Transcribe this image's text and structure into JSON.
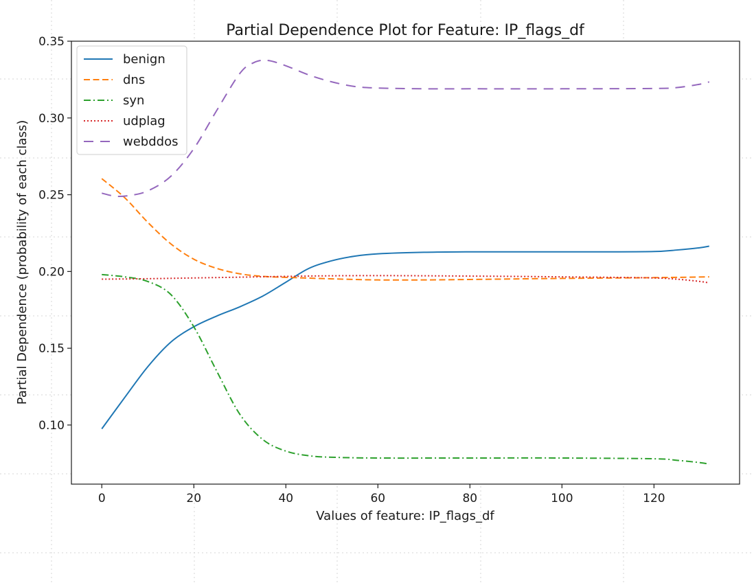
{
  "chart_data": {
    "type": "line",
    "title": "Partial Dependence Plot for Feature: IP_flags_df",
    "xlabel": "Values of feature: IP_flags_df",
    "ylabel": "Partial Dependence (probability of each class)",
    "xlim": [
      -6.6,
      138.6
    ],
    "ylim": [
      0.0615,
      0.35
    ],
    "xticks": [
      0,
      20,
      40,
      60,
      80,
      100,
      120
    ],
    "yticks": [
      0.1,
      0.15,
      0.2,
      0.25,
      0.3,
      0.35
    ],
    "xtick_labels": [
      "0",
      "20",
      "40",
      "60",
      "80",
      "100",
      "120"
    ],
    "ytick_labels": [
      "0.10",
      "0.15",
      "0.20",
      "0.25",
      "0.30",
      "0.35"
    ],
    "grid": false,
    "legend_position": "top-left",
    "series": [
      {
        "name": "benign",
        "color": "#1f77b4",
        "dash": "solid",
        "x": [
          0,
          5,
          10,
          15,
          20,
          25,
          30,
          35,
          40,
          45,
          50,
          55,
          60,
          70,
          80,
          90,
          100,
          110,
          120,
          125,
          130,
          132
        ],
        "y": [
          0.0975,
          0.118,
          0.138,
          0.154,
          0.164,
          0.171,
          0.177,
          0.184,
          0.193,
          0.202,
          0.207,
          0.21,
          0.2115,
          0.2125,
          0.2128,
          0.2128,
          0.2128,
          0.2128,
          0.213,
          0.214,
          0.2155,
          0.2165
        ]
      },
      {
        "name": "dns",
        "color": "#ff7f0e",
        "dash": "dashed",
        "x": [
          0,
          5,
          10,
          15,
          20,
          25,
          30,
          35,
          40,
          50,
          60,
          70,
          80,
          100,
          120,
          132
        ],
        "y": [
          0.2605,
          0.248,
          0.232,
          0.218,
          0.208,
          0.202,
          0.1985,
          0.1968,
          0.1962,
          0.1952,
          0.1945,
          0.1945,
          0.1948,
          0.1955,
          0.196,
          0.1965
        ]
      },
      {
        "name": "syn",
        "color": "#2ca02c",
        "dash": "dashdot",
        "x": [
          0,
          5,
          10,
          15,
          20,
          25,
          30,
          35,
          40,
          45,
          50,
          60,
          80,
          100,
          120,
          125,
          130,
          132
        ],
        "y": [
          0.198,
          0.1965,
          0.1935,
          0.185,
          0.164,
          0.135,
          0.107,
          0.0905,
          0.083,
          0.08,
          0.079,
          0.0785,
          0.0785,
          0.0785,
          0.078,
          0.077,
          0.0755,
          0.0745
        ]
      },
      {
        "name": "udplag",
        "color": "#d62728",
        "dash": "dotted",
        "x": [
          0,
          10,
          20,
          30,
          40,
          50,
          60,
          70,
          80,
          90,
          100,
          110,
          120,
          125,
          130,
          132
        ],
        "y": [
          0.195,
          0.1953,
          0.1958,
          0.1963,
          0.1968,
          0.1972,
          0.1973,
          0.1972,
          0.197,
          0.1968,
          0.1965,
          0.1962,
          0.1958,
          0.195,
          0.1935,
          0.1925
        ]
      },
      {
        "name": "webddos",
        "color": "#9467bd",
        "dash": "longdash",
        "x": [
          0,
          3,
          6,
          10,
          15,
          20,
          25,
          30,
          33,
          36,
          40,
          45,
          50,
          55,
          60,
          70,
          80,
          100,
          120,
          125,
          130,
          132
        ],
        "y": [
          0.251,
          0.249,
          0.2495,
          0.2525,
          0.262,
          0.28,
          0.305,
          0.329,
          0.336,
          0.3375,
          0.334,
          0.328,
          0.3235,
          0.3205,
          0.3195,
          0.319,
          0.319,
          0.319,
          0.3192,
          0.3198,
          0.322,
          0.3235
        ]
      }
    ]
  }
}
